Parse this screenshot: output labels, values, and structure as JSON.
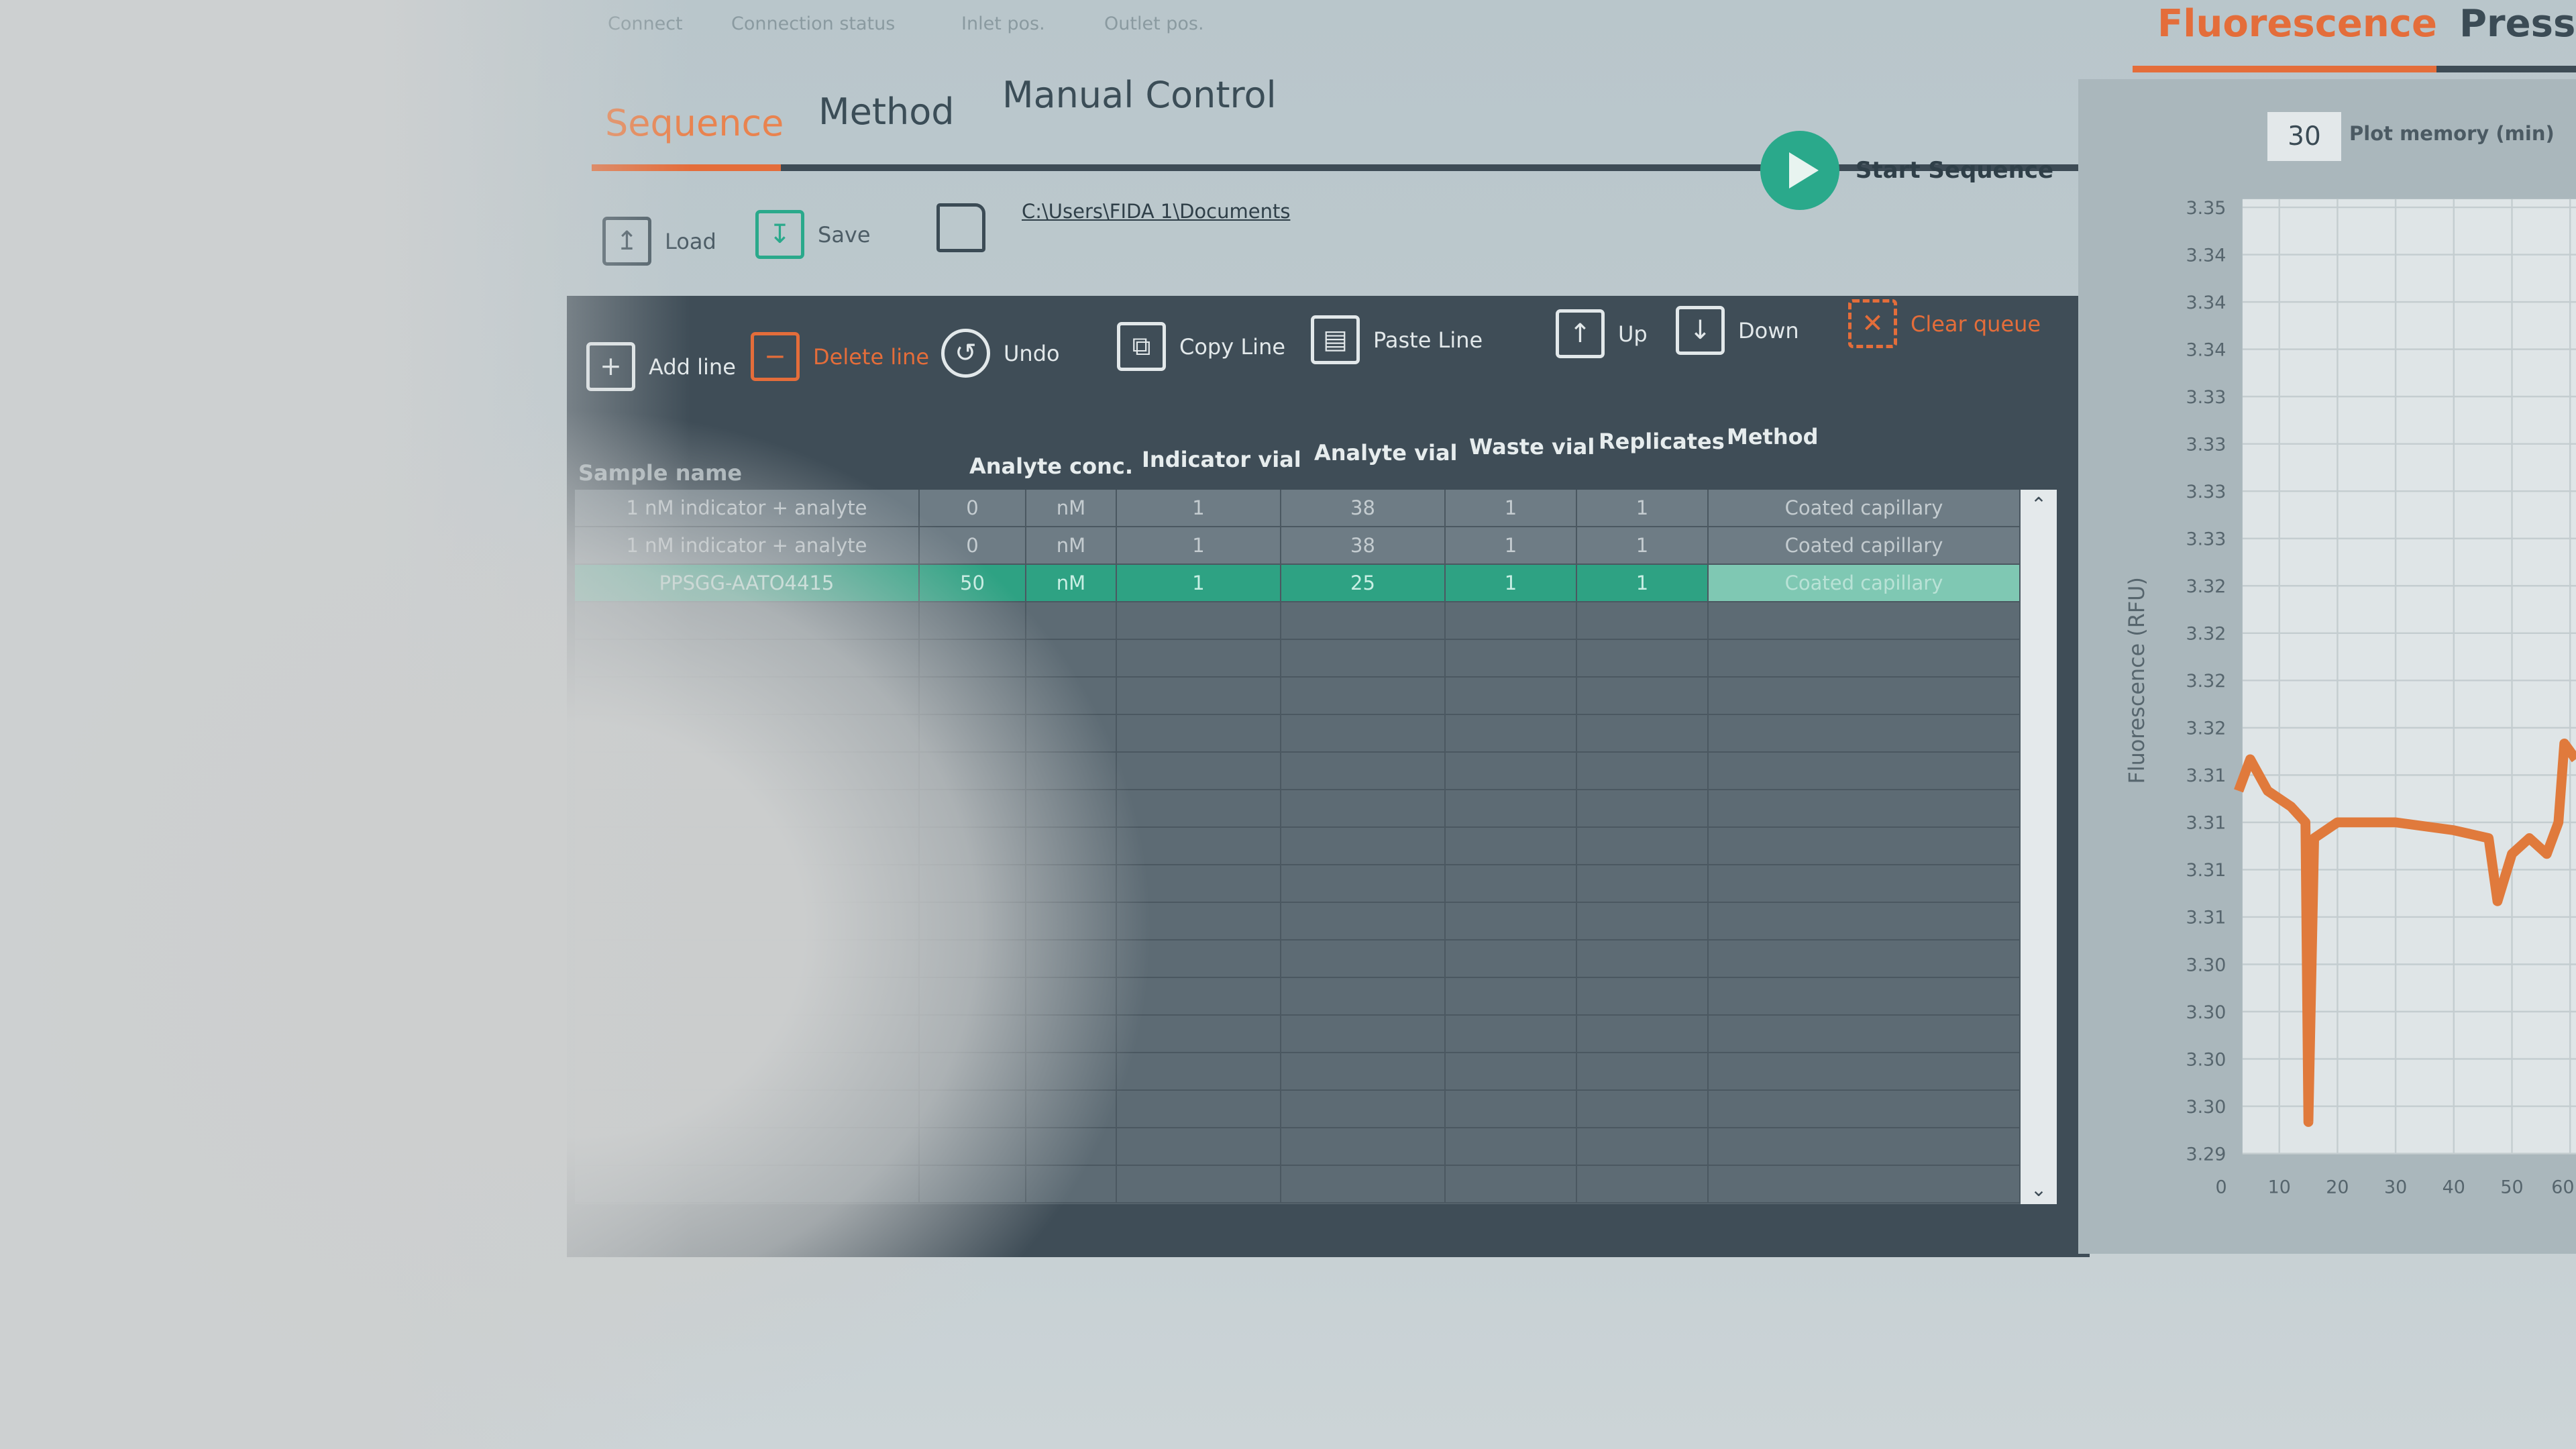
{
  "status_bar": {
    "items": [
      "Connect",
      "Connection status",
      "Inlet pos.",
      "Outlet pos."
    ]
  },
  "tabs": [
    {
      "label": "Sequence",
      "active": true
    },
    {
      "label": "Method"
    },
    {
      "label": "Manual Control"
    }
  ],
  "toolbar": {
    "load": "Load",
    "save": "Save",
    "path": "C:\\Users\\FIDA 1\\Documents",
    "start": "Start Sequence"
  },
  "queue_toolbar": {
    "add": "Add line",
    "delete": "Delete line",
    "undo": "Undo",
    "copy": "Copy Line",
    "paste": "Paste Line",
    "up": "Up",
    "down": "Down",
    "clear": "Clear queue"
  },
  "table": {
    "headers": [
      "Sample name",
      "Analyte conc.",
      "Indicator vial",
      "Analyte vial",
      "Waste vial",
      "Replicates",
      "Method"
    ],
    "rows": [
      {
        "sample": "1 nM indicator + analyte",
        "conc": "0",
        "unit": "nM",
        "indicator": "1",
        "analyte": "38",
        "waste": "1",
        "replicates": "1",
        "method": "Coated capillary"
      },
      {
        "sample": "1 nM indicator + analyte",
        "conc": "0",
        "unit": "nM",
        "indicator": "1",
        "analyte": "38",
        "waste": "1",
        "replicates": "1",
        "method": "Coated capillary"
      },
      {
        "sample": "PPSGG-AATO4415",
        "conc": "50",
        "unit": "nM",
        "indicator": "1",
        "analyte": "25",
        "waste": "1",
        "replicates": "1",
        "method": "Coated capillary",
        "selected": true
      }
    ]
  },
  "right_panel": {
    "tabs": [
      "Fluorescence",
      "Press"
    ],
    "plot_memory_value": "30",
    "plot_memory_label": "Plot memory (min)"
  },
  "colors": {
    "accent": "#e46d3a",
    "selected": "#2ea283",
    "dark": "#3f4d57",
    "series": "#e07a3c"
  },
  "chart_data": {
    "type": "line",
    "ylabel": "Fluorescence (RFU)",
    "xlabel": "",
    "ylim": [
      3.29,
      3.35
    ],
    "xlim": [
      0,
      60
    ],
    "yticks": [
      "3.35",
      "3.34",
      "3.34",
      "3.34",
      "3.33",
      "3.33",
      "3.33",
      "3.33",
      "3.32",
      "3.32",
      "3.32",
      "3.32",
      "3.31",
      "3.31",
      "3.31",
      "3.31",
      "3.30",
      "3.30",
      "3.30",
      "3.30",
      "3.29"
    ],
    "xticks": [
      "0",
      "10",
      "20",
      "30",
      "40",
      "50",
      "60"
    ],
    "grid": true,
    "series": [
      {
        "color": "#e07a3c",
        "x": [
          3,
          5,
          8,
          12,
          14.5,
          15,
          16,
          20,
          30,
          40,
          46,
          47.5,
          50,
          53,
          56,
          58,
          59,
          61
        ],
        "y": [
          3.313,
          3.315,
          3.313,
          3.312,
          3.311,
          3.292,
          3.31,
          3.311,
          3.311,
          3.3105,
          3.31,
          3.306,
          3.309,
          3.31,
          3.309,
          3.311,
          3.316,
          3.315
        ]
      }
    ]
  }
}
